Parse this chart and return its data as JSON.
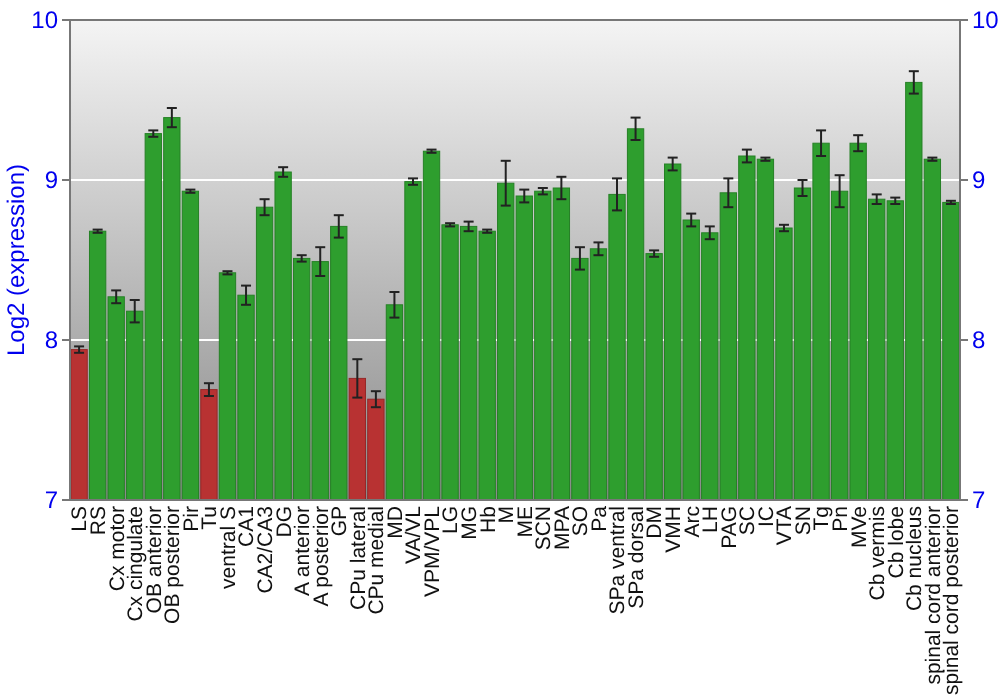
{
  "chart_data": {
    "type": "bar",
    "ylabel": "Log2 (expression)",
    "categories": [
      "LS",
      "RS",
      "Cx motor",
      "Cx cingulate",
      "OB anterior",
      "OB posterior",
      "Pir",
      "Tu",
      "ventral S",
      "CA1",
      "CA2/CA3",
      "DG",
      "A anterior",
      "A posterior",
      "GP",
      "CPu lateral",
      "CPu medial",
      "MD",
      "VA/VL",
      "VPM/VPL",
      "LG",
      "MG",
      "Hb",
      "M",
      "ME",
      "SCN",
      "MPA",
      "SO",
      "Pa",
      "SPa ventral",
      "SPa dorsal",
      "DM",
      "VMH",
      "Arc",
      "LH",
      "PAG",
      "SC",
      "IC",
      "VTA",
      "SN",
      "Tg",
      "Pn",
      "MVe",
      "Cb vermis",
      "Cb lobe",
      "Cb nucleus",
      "spinal cord anterior",
      "spinal cord posterior"
    ],
    "values": [
      7.94,
      8.68,
      8.27,
      8.18,
      9.29,
      9.39,
      8.93,
      7.69,
      8.42,
      8.28,
      8.83,
      9.05,
      8.51,
      8.49,
      8.71,
      7.76,
      7.63,
      8.22,
      8.99,
      9.18,
      8.72,
      8.71,
      8.68,
      8.98,
      8.9,
      8.93,
      8.95,
      8.51,
      8.57,
      8.91,
      9.32,
      8.54,
      9.1,
      8.75,
      8.67,
      8.92,
      9.15,
      9.13,
      8.7,
      8.95,
      9.23,
      8.93,
      9.23,
      8.88,
      8.87,
      9.61,
      9.13,
      8.86
    ],
    "errors": [
      0.02,
      0.01,
      0.04,
      0.07,
      0.02,
      0.06,
      0.01,
      0.04,
      0.01,
      0.06,
      0.05,
      0.03,
      0.02,
      0.09,
      0.07,
      0.12,
      0.05,
      0.08,
      0.02,
      0.01,
      0.01,
      0.03,
      0.01,
      0.14,
      0.04,
      0.02,
      0.07,
      0.07,
      0.04,
      0.1,
      0.07,
      0.02,
      0.04,
      0.04,
      0.04,
      0.09,
      0.04,
      0.01,
      0.02,
      0.05,
      0.08,
      0.1,
      0.05,
      0.03,
      0.02,
      0.07,
      0.01,
      0.01
    ],
    "colors": [
      "#b83232",
      "#2e9e2e",
      "#2e9e2e",
      "#2e9e2e",
      "#2e9e2e",
      "#2e9e2e",
      "#2e9e2e",
      "#b83232",
      "#2e9e2e",
      "#2e9e2e",
      "#2e9e2e",
      "#2e9e2e",
      "#2e9e2e",
      "#2e9e2e",
      "#2e9e2e",
      "#b83232",
      "#b83232",
      "#2e9e2e",
      "#2e9e2e",
      "#2e9e2e",
      "#2e9e2e",
      "#2e9e2e",
      "#2e9e2e",
      "#2e9e2e",
      "#2e9e2e",
      "#2e9e2e",
      "#2e9e2e",
      "#2e9e2e",
      "#2e9e2e",
      "#2e9e2e",
      "#2e9e2e",
      "#2e9e2e",
      "#2e9e2e",
      "#2e9e2e",
      "#2e9e2e",
      "#2e9e2e",
      "#2e9e2e",
      "#2e9e2e",
      "#2e9e2e",
      "#2e9e2e",
      "#2e9e2e",
      "#2e9e2e",
      "#2e9e2e",
      "#2e9e2e",
      "#2e9e2e",
      "#2e9e2e",
      "#2e9e2e",
      "#2e9e2e"
    ],
    "ylim": [
      7,
      10
    ],
    "yticks": [
      7,
      8,
      9,
      10
    ],
    "y2lim": [
      7,
      10
    ],
    "y2ticks": [
      7,
      8,
      9,
      10
    ],
    "grid": "y"
  }
}
